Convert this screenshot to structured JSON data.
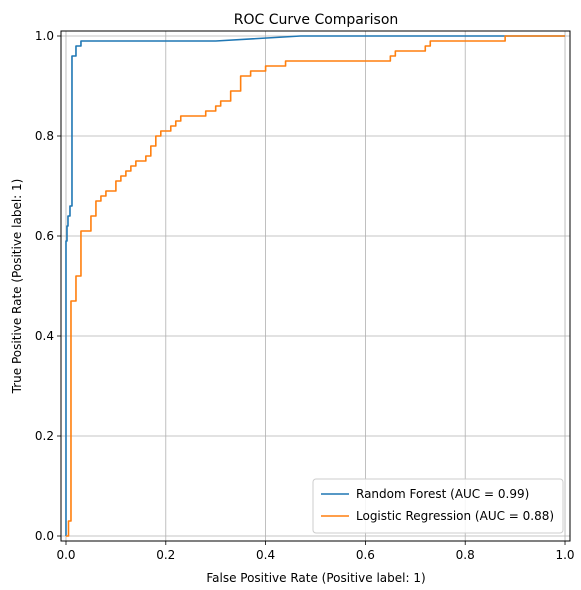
{
  "chart_data": {
    "type": "line",
    "title": "ROC Curve Comparison",
    "xlabel": "False Positive Rate (Positive label: 1)",
    "ylabel": "True Positive Rate (Positive label: 1)",
    "xlim": [
      -0.01,
      1.01
    ],
    "ylim": [
      -0.01,
      1.01
    ],
    "xticks": [
      "0.0",
      "0.2",
      "0.4",
      "0.6",
      "0.8",
      "1.0"
    ],
    "yticks": [
      "0.0",
      "0.2",
      "0.4",
      "0.6",
      "0.8",
      "1.0"
    ],
    "grid": true,
    "legend_position": "lower-right",
    "colors": {
      "random_forest": "#1f77b4",
      "logistic_regression": "#ff7f0e",
      "grid": "#b0b0b0"
    },
    "series": [
      {
        "name": "Random Forest (AUC = 0.99)",
        "x": [
          0.0,
          0.0,
          0.002,
          0.002,
          0.004,
          0.004,
          0.008,
          0.008,
          0.012,
          0.012,
          0.02,
          0.02,
          0.03,
          0.03,
          0.3,
          0.47,
          1.0
        ],
        "y": [
          0.0,
          0.59,
          0.59,
          0.62,
          0.62,
          0.64,
          0.64,
          0.66,
          0.66,
          0.96,
          0.96,
          0.98,
          0.98,
          0.99,
          0.99,
          1.0,
          1.0
        ]
      },
      {
        "name": "Logistic Regression (AUC = 0.88)",
        "x": [
          0.0,
          0.005,
          0.005,
          0.01,
          0.01,
          0.02,
          0.02,
          0.03,
          0.03,
          0.05,
          0.05,
          0.06,
          0.06,
          0.07,
          0.07,
          0.08,
          0.08,
          0.1,
          0.1,
          0.11,
          0.11,
          0.12,
          0.12,
          0.13,
          0.13,
          0.14,
          0.14,
          0.16,
          0.16,
          0.17,
          0.17,
          0.18,
          0.18,
          0.19,
          0.19,
          0.21,
          0.21,
          0.22,
          0.22,
          0.23,
          0.23,
          0.28,
          0.28,
          0.3,
          0.3,
          0.31,
          0.31,
          0.33,
          0.33,
          0.35,
          0.35,
          0.37,
          0.37,
          0.4,
          0.4,
          0.44,
          0.44,
          0.48,
          0.48,
          0.65,
          0.65,
          0.66,
          0.66,
          0.68,
          0.68,
          0.72,
          0.72,
          0.73,
          0.73,
          0.76,
          0.76,
          0.88,
          0.88,
          0.91,
          0.91,
          1.0
        ],
        "y": [
          0.0,
          0.0,
          0.03,
          0.03,
          0.47,
          0.47,
          0.52,
          0.52,
          0.61,
          0.61,
          0.64,
          0.64,
          0.67,
          0.67,
          0.68,
          0.68,
          0.69,
          0.69,
          0.71,
          0.71,
          0.72,
          0.72,
          0.73,
          0.73,
          0.74,
          0.74,
          0.75,
          0.75,
          0.76,
          0.76,
          0.78,
          0.78,
          0.8,
          0.8,
          0.81,
          0.81,
          0.82,
          0.82,
          0.83,
          0.83,
          0.84,
          0.84,
          0.85,
          0.85,
          0.86,
          0.86,
          0.87,
          0.87,
          0.89,
          0.89,
          0.92,
          0.92,
          0.93,
          0.93,
          0.94,
          0.94,
          0.95,
          0.95,
          0.95,
          0.95,
          0.96,
          0.96,
          0.97,
          0.97,
          0.97,
          0.97,
          0.98,
          0.98,
          0.99,
          0.99,
          0.99,
          0.99,
          1.0,
          1.0,
          1.0,
          1.0
        ]
      }
    ]
  }
}
